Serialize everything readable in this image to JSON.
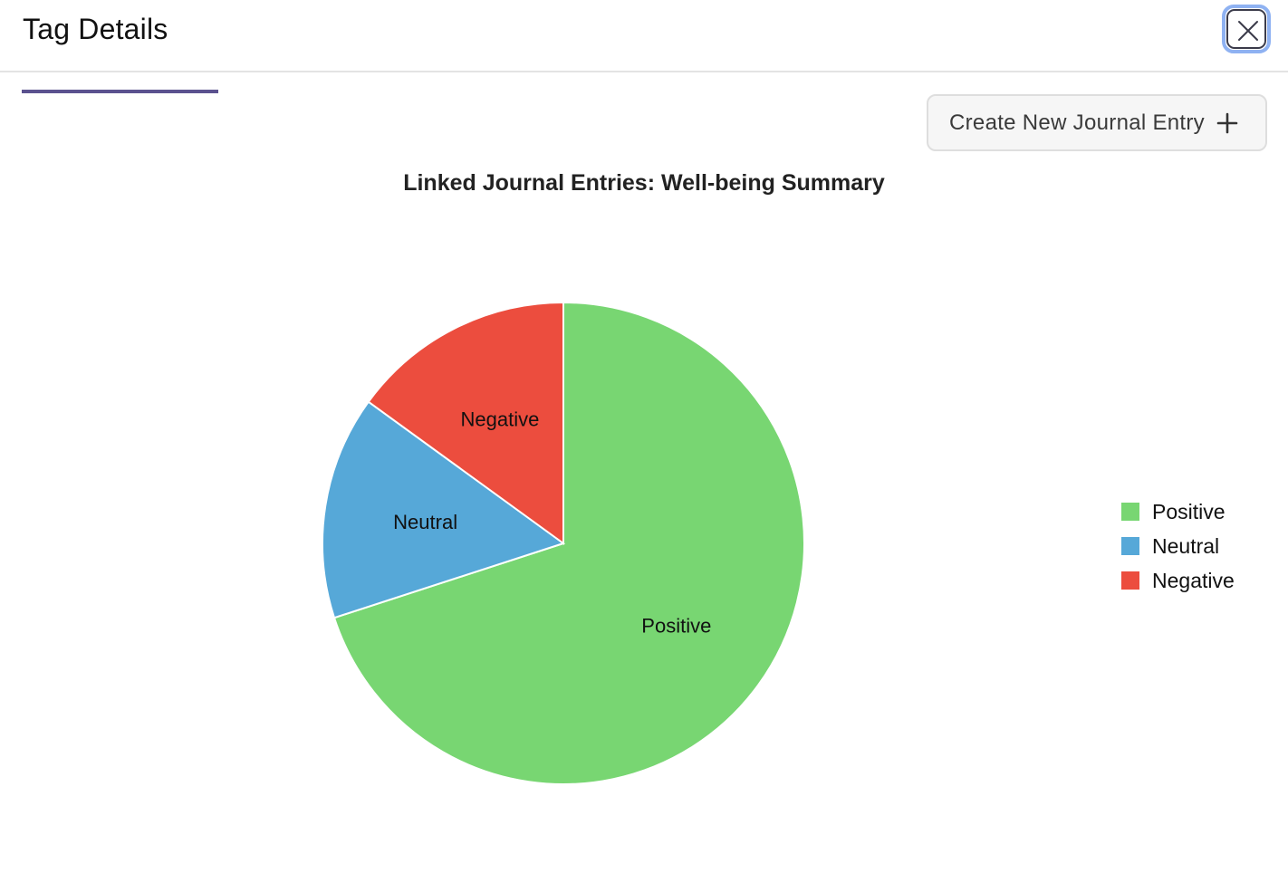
{
  "dialog": {
    "title": "Tag Details"
  },
  "actions": {
    "create_label": "Create New Journal Entry"
  },
  "icons": {
    "close": "close-icon",
    "add": "plus-icon"
  },
  "colors": {
    "tab_indicator": "#5b528f",
    "close_focus_ring": "#8fb2f2"
  },
  "chart_data": {
    "type": "pie",
    "title": "Linked Journal Entries: Well-being Summary",
    "categories": [
      "Positive",
      "Neutral",
      "Negative"
    ],
    "values": [
      70,
      15,
      15
    ],
    "colors": [
      "#78d672",
      "#56a8d8",
      "#ec4d3e"
    ],
    "slice_labels": [
      "Positive",
      "Neutral",
      "Negative"
    ],
    "legend": {
      "position": "right",
      "entries": [
        "Positive",
        "Neutral",
        "Negative"
      ]
    }
  }
}
